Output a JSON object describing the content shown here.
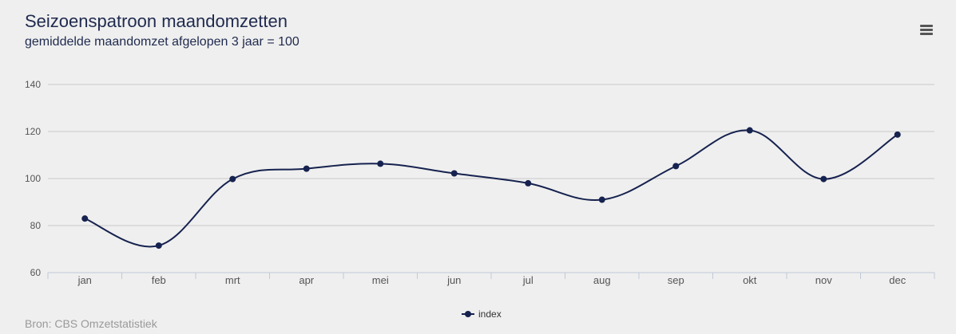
{
  "chart_data": {
    "type": "line",
    "title": "Seizoenspatroon maandomzetten",
    "subtitle": "gemiddelde maandomzet afgelopen 3 jaar = 100",
    "categories": [
      "jan",
      "feb",
      "mrt",
      "apr",
      "mei",
      "jun",
      "jul",
      "aug",
      "sep",
      "okt",
      "nov",
      "dec"
    ],
    "series": [
      {
        "name": "index",
        "values": [
          83,
          71.5,
          99.8,
          104.2,
          106.3,
          102.2,
          98,
          91,
          105.3,
          120.5,
          99.8,
          118.7
        ],
        "color": "#16224f"
      }
    ],
    "ylim": [
      60,
      140
    ],
    "yticks": [
      60,
      80,
      100,
      120,
      140
    ],
    "grid": true,
    "legend": "bottom-center",
    "credits": "Bron: CBS Omzetstatistiek"
  },
  "toolbar": {
    "menu_icon": "hamburger-menu-icon"
  }
}
